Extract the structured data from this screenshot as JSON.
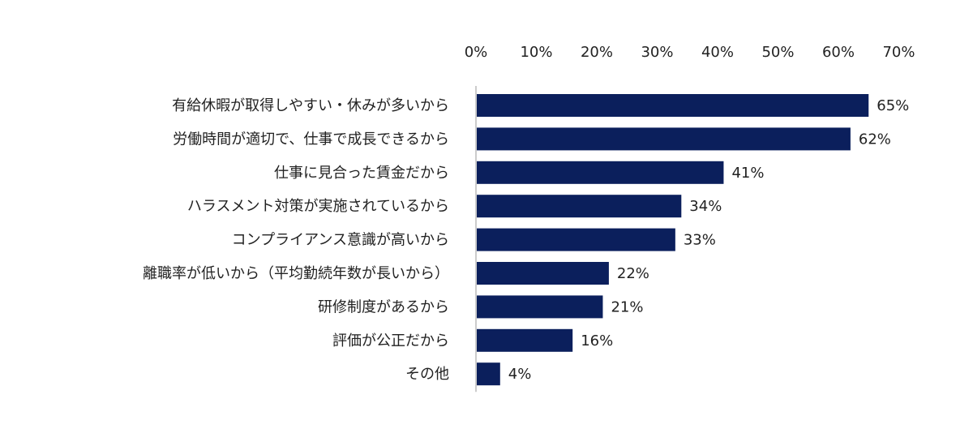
{
  "chart_data": {
    "type": "bar",
    "orientation": "horizontal",
    "categories": [
      "有給休暇が取得しやすい・休みが多いから",
      "労働時間が適切で、仕事で成長できるから",
      "仕事に見合った賃金だから",
      "ハラスメント対策が実施されているから",
      "コンプライアンス意識が高いから",
      "離職率が低いから（平均勤続年数が長いから）",
      "研修制度があるから",
      "評価が公正だから",
      "その他"
    ],
    "values": [
      65,
      62,
      41,
      34,
      33,
      22,
      21,
      16,
      4
    ],
    "value_labels": [
      "65%",
      "62%",
      "41%",
      "34%",
      "33%",
      "22%",
      "21%",
      "16%",
      "4%"
    ],
    "xlim": [
      0,
      70
    ],
    "x_ticks": [
      "0%",
      "10%",
      "20%",
      "30%",
      "40%",
      "50%",
      "60%",
      "70%"
    ],
    "x_axis_position": "top",
    "grid": false,
    "bar_color": "#0b1f5c"
  }
}
